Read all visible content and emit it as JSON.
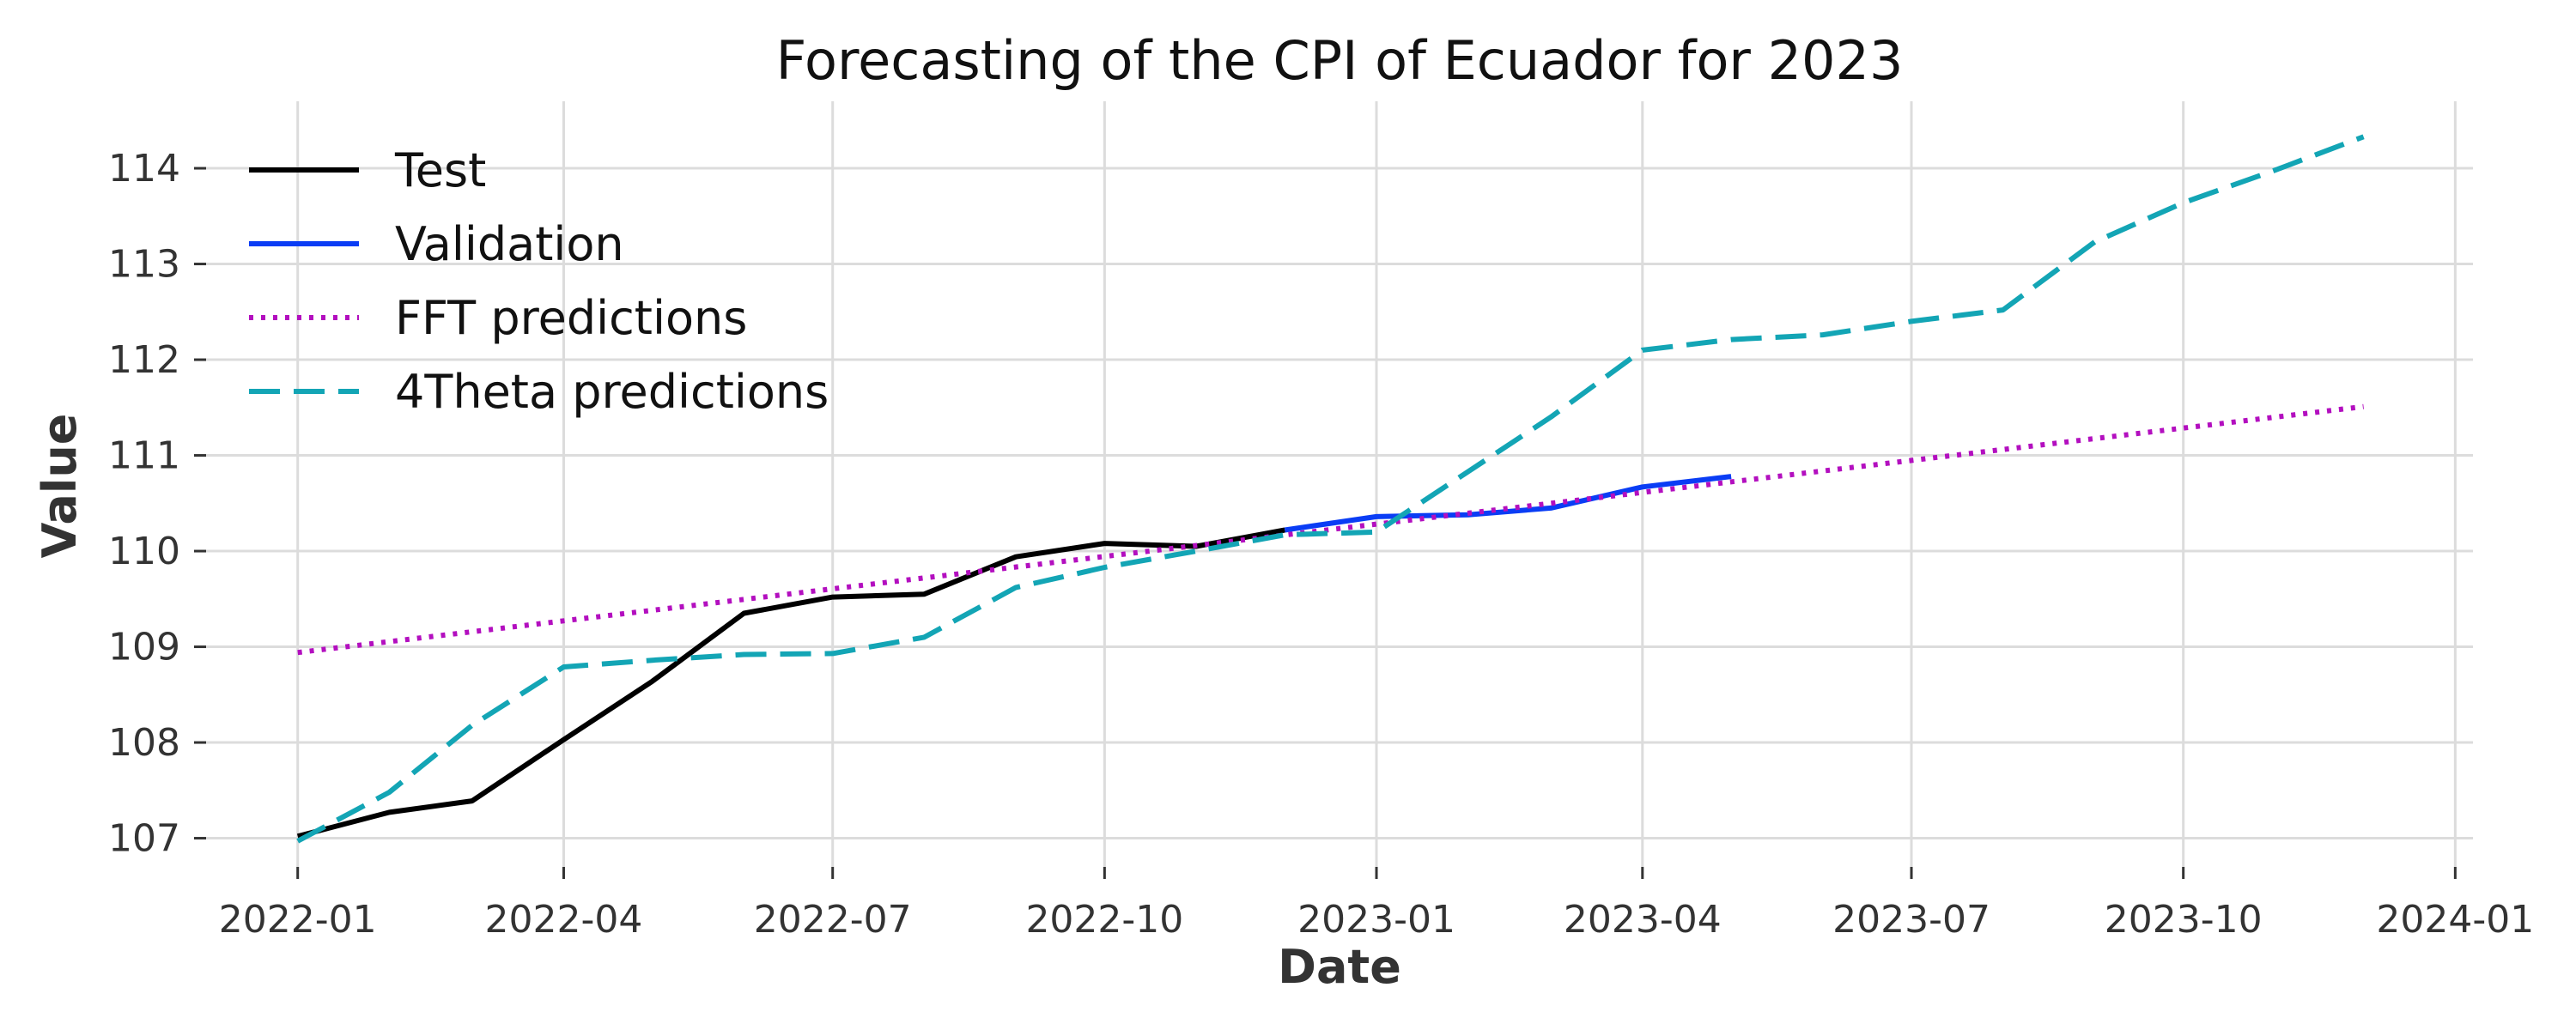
{
  "chart_data": {
    "type": "line",
    "title": "Forecasting of the CPI of Ecuador for 2023",
    "xlabel": "Date",
    "ylabel": "Value",
    "grid": true,
    "legend_position": "top-left",
    "xlim": [
      "2021-12-01",
      "2024-01-07"
    ],
    "ylim": [
      106.7,
      114.7
    ],
    "x_ticks": [
      "2022-01",
      "2022-04",
      "2022-07",
      "2022-10",
      "2023-01",
      "2023-04",
      "2023-07",
      "2023-10",
      "2024-01"
    ],
    "y_ticks": [
      107,
      108,
      109,
      110,
      111,
      112,
      113,
      114
    ],
    "series": [
      {
        "name": "Test",
        "color": "#000000",
        "style": "solid",
        "x": [
          "2022-01-01",
          "2022-02-01",
          "2022-03-01",
          "2022-04-01",
          "2022-05-01",
          "2022-06-01",
          "2022-07-01",
          "2022-08-01",
          "2022-09-01",
          "2022-10-01",
          "2022-11-01",
          "2022-12-01"
        ],
        "y": [
          107.02,
          107.27,
          107.39,
          108.03,
          108.64,
          109.35,
          109.52,
          109.55,
          109.94,
          110.08,
          110.05,
          110.22
        ]
      },
      {
        "name": "Validation",
        "color": "#0a3df5",
        "style": "solid",
        "x": [
          "2022-12-01",
          "2023-01-01",
          "2023-02-01",
          "2023-03-01",
          "2023-04-01",
          "2023-05-01"
        ],
        "y": [
          110.22,
          110.36,
          110.38,
          110.45,
          110.67,
          110.78
        ]
      },
      {
        "name": "FFT predictions",
        "color": "#b30fbf",
        "style": "dotted",
        "x": [
          "2022-01-01",
          "2023-12-01"
        ],
        "y": [
          108.94,
          111.51
        ]
      },
      {
        "name": "4Theta predictions",
        "color": "#13a5b5",
        "style": "dashed",
        "x": [
          "2022-01-01",
          "2022-02-01",
          "2022-03-01",
          "2022-04-01",
          "2022-05-01",
          "2022-06-01",
          "2022-07-01",
          "2022-08-01",
          "2022-09-01",
          "2022-10-01",
          "2022-11-01",
          "2022-12-01",
          "2023-01-01",
          "2023-02-01",
          "2023-03-01",
          "2023-04-01",
          "2023-05-01",
          "2023-06-01",
          "2023-07-01",
          "2023-08-01",
          "2023-09-01",
          "2023-10-01",
          "2023-11-01",
          "2023-12-01"
        ],
        "y": [
          106.97,
          107.48,
          108.18,
          108.79,
          108.86,
          108.92,
          108.93,
          109.1,
          109.62,
          109.83,
          110.0,
          110.17,
          110.2,
          110.83,
          111.4,
          112.1,
          112.21,
          112.26,
          112.4,
          112.52,
          113.23,
          113.64,
          113.98,
          114.33
        ]
      }
    ]
  }
}
